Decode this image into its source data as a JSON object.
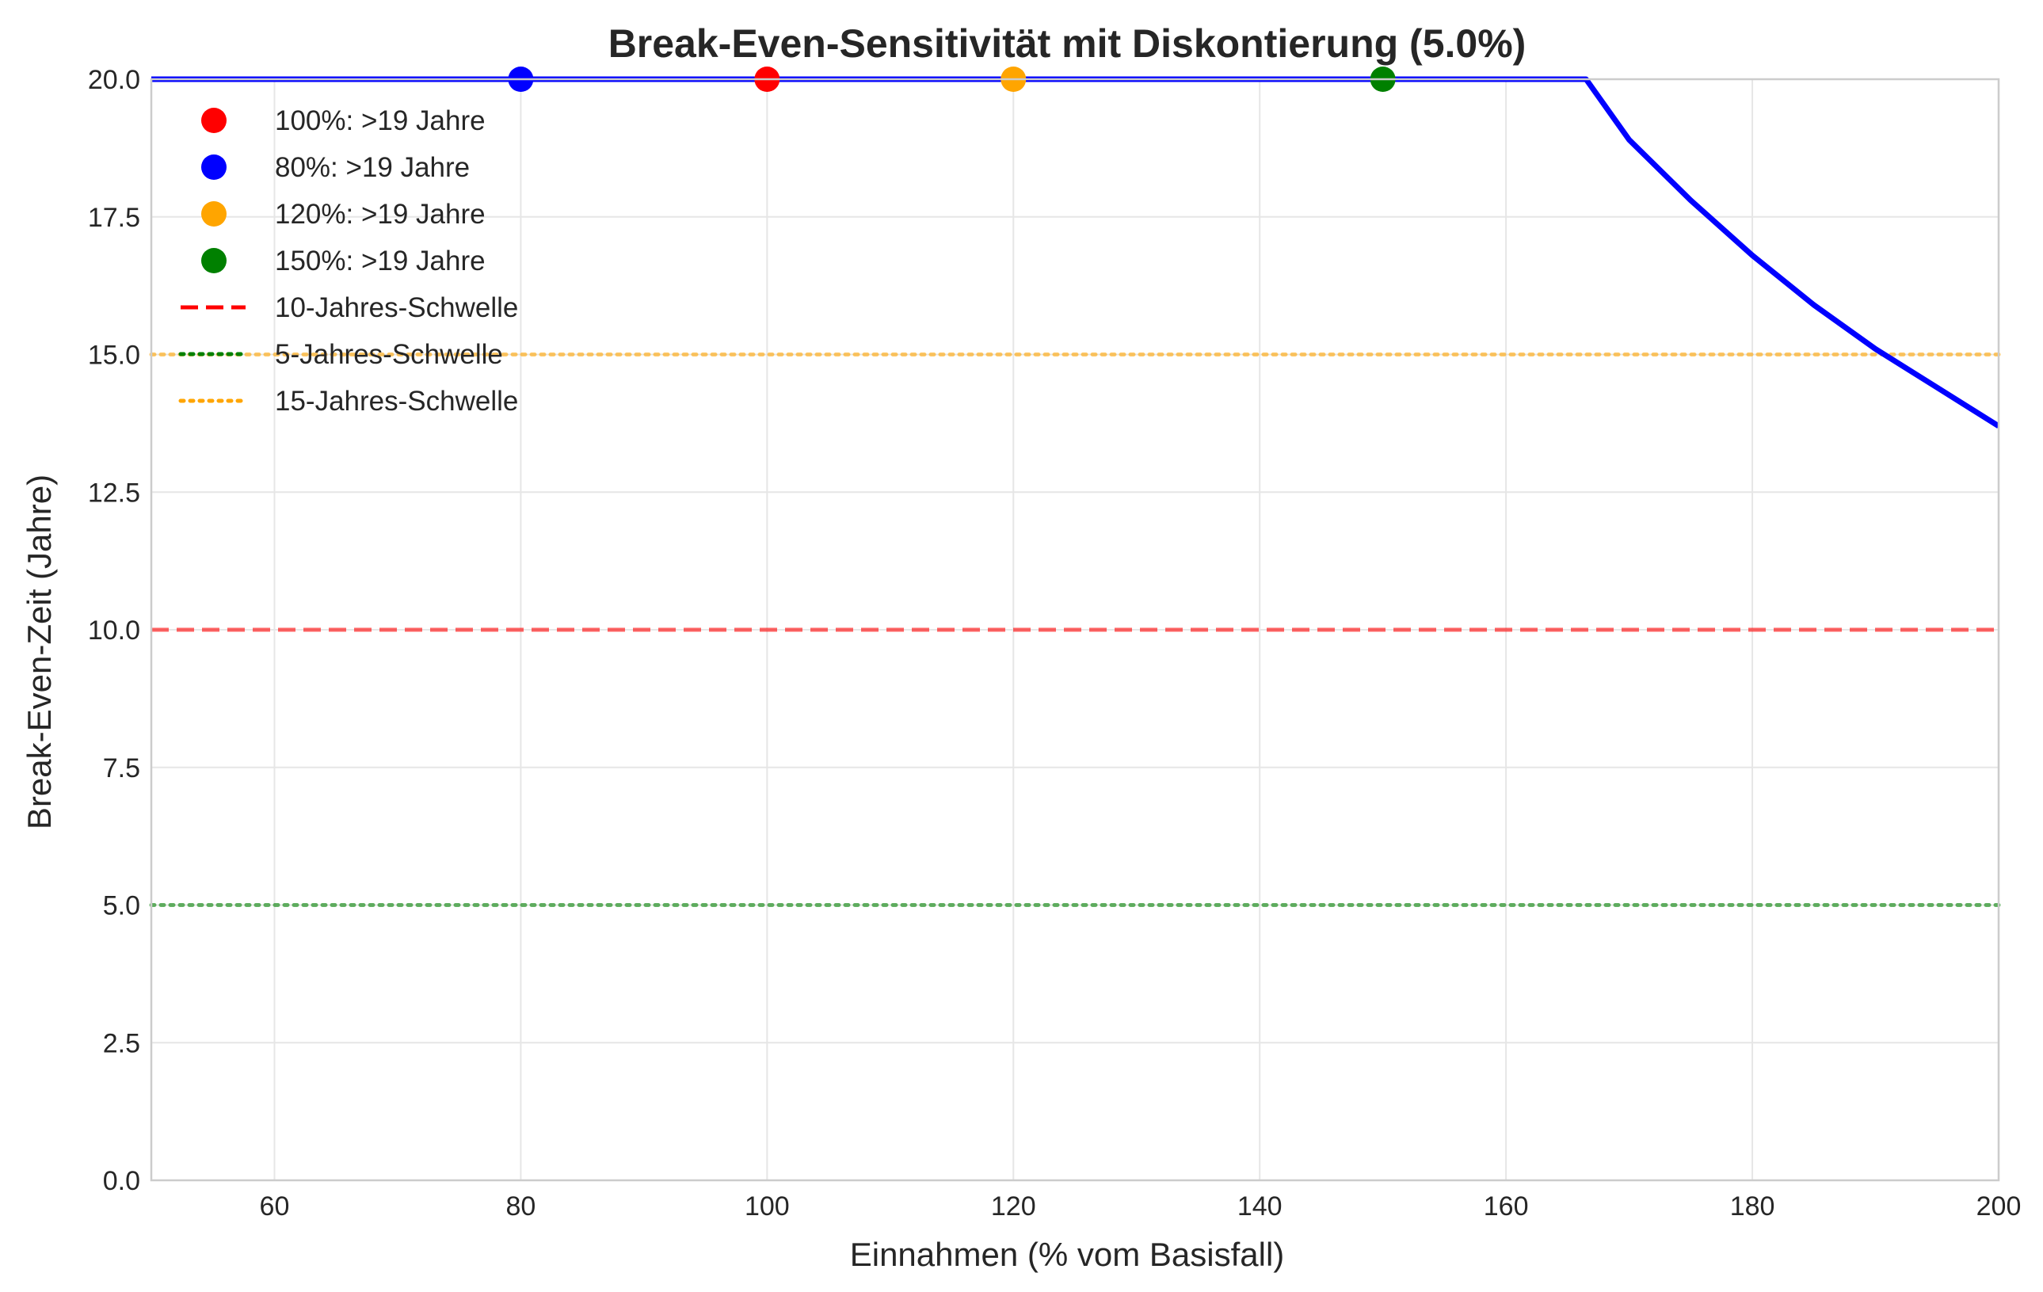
{
  "chart_data": {
    "type": "line",
    "title": "Break-Even-Sensitivität mit Diskontierung (5.0%)",
    "xlabel": "Einnahmen (% vom Basisfall)",
    "ylabel": "Break-Even-Zeit (Jahre)",
    "xlim": [
      50,
      200
    ],
    "ylim": [
      0,
      20
    ],
    "x_ticks": [
      "60",
      "80",
      "100",
      "120",
      "140",
      "160",
      "180",
      "200"
    ],
    "y_ticks": [
      "0.0",
      "2.5",
      "5.0",
      "7.5",
      "10.0",
      "12.5",
      "15.0",
      "17.5",
      "20.0"
    ],
    "grid": true,
    "legend_position": "upper-left",
    "series": [
      {
        "color": "#0000ff",
        "x": [
          50,
          80,
          100,
          120,
          150,
          166.5,
          170,
          175,
          180,
          185,
          190,
          195,
          200
        ],
        "y": [
          20,
          20,
          20,
          20,
          20,
          20,
          18.9,
          17.8,
          16.8,
          15.9,
          15.1,
          14.4,
          13.7
        ]
      }
    ],
    "markers": [
      {
        "x": 100,
        "y": 20,
        "color": "#ff0000",
        "label": "100%: >19 Jahre"
      },
      {
        "x": 80,
        "y": 20,
        "color": "#0000ff",
        "label": "80%: >19 Jahre"
      },
      {
        "x": 120,
        "y": 20,
        "color": "#ffa500",
        "label": "120%: >19 Jahre"
      },
      {
        "x": 150,
        "y": 20,
        "color": "#008000",
        "label": "150%: >19 Jahre"
      }
    ],
    "thresholds": [
      {
        "y": 10,
        "color": "#ff0000",
        "style": "dashed",
        "label": "10-Jahres-Schwelle"
      },
      {
        "y": 5,
        "color": "#008000",
        "style": "dotted",
        "label": "5-Jahres-Schwelle"
      },
      {
        "y": 15,
        "color": "#ffa500",
        "style": "dotted",
        "label": "15-Jahres-Schwelle"
      }
    ]
  }
}
